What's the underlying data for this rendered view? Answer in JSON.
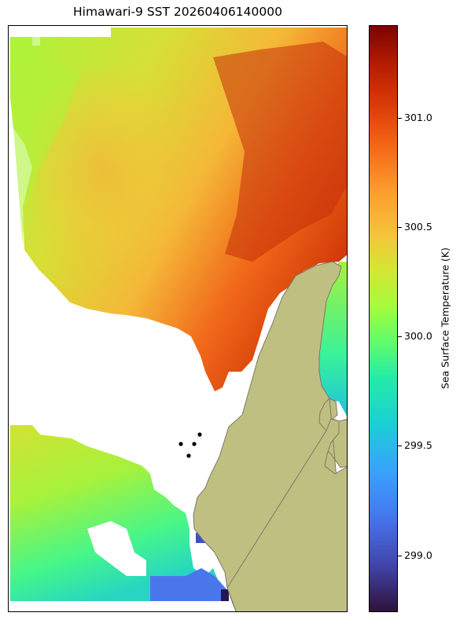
{
  "title": "Himawari-9 SST 20260406140000",
  "colorbar": {
    "label": "Sea Surface Temperature (K)",
    "min": 298.72,
    "max": 301.42,
    "ticks": [
      "299.0",
      "299.5",
      "300.0",
      "300.5",
      "301.0"
    ],
    "colormap": "turbo"
  },
  "colors": {
    "land": "#bfbf82",
    "coast": "#7a7a6a",
    "markers": "#000000"
  },
  "map": {
    "markers_count": 4,
    "features": [
      "sea-surface-temperature-field",
      "land-mass",
      "marker-points"
    ]
  }
}
